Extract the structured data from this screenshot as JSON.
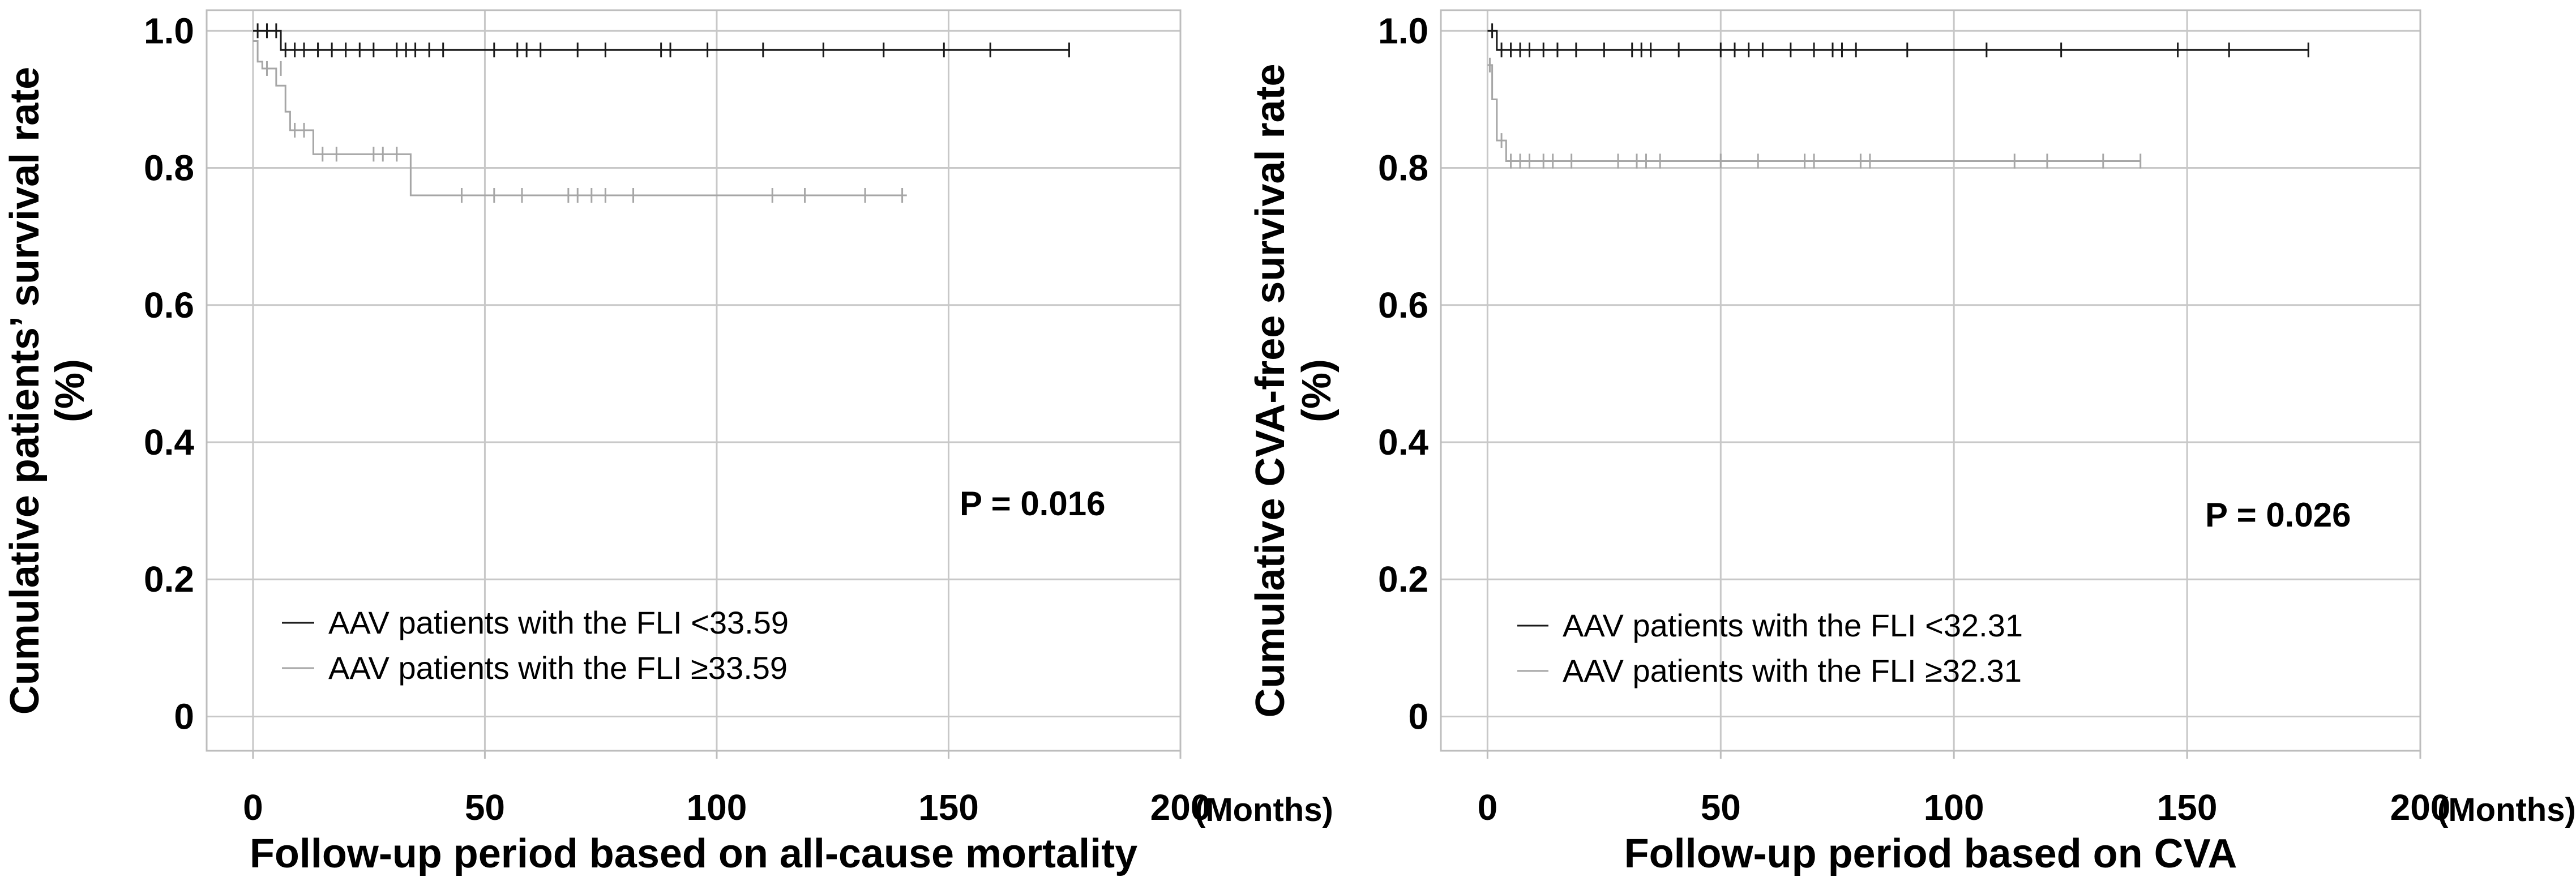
{
  "chart_data": [
    {
      "type": "line",
      "subtype": "kaplan-meier",
      "title": "",
      "xlabel": "Follow-up period based on all-cause mortality",
      "xunit_label": "(Months)",
      "ylabel_line1": "Cumulative patients’ survival rate",
      "ylabel_line2": "(%)",
      "xlim": [
        -10,
        200
      ],
      "ylim": [
        -0.05,
        1.03
      ],
      "xticks": [
        0,
        50,
        100,
        150,
        200
      ],
      "yticks": [
        0,
        0.2,
        0.4,
        0.6,
        0.8,
        1.0
      ],
      "ytick_labels": [
        "0",
        "0.2",
        "0.4",
        "0.6",
        "0.8",
        "1.0"
      ],
      "grid": true,
      "p_value_text": "P = 0.016",
      "legend_position": "bottom-left",
      "series": [
        {
          "name": "AAV patients with the FLI <33.59",
          "color": "#1a1a1a",
          "steps": [
            [
              0,
              1.0
            ],
            [
              6,
              0.972
            ],
            [
              176,
              0.972
            ]
          ],
          "censored": [
            [
              1,
              1.0
            ],
            [
              3,
              1.0
            ],
            [
              5,
              1.0
            ],
            [
              7,
              0.972
            ],
            [
              9,
              0.972
            ],
            [
              11,
              0.972
            ],
            [
              14,
              0.972
            ],
            [
              17,
              0.972
            ],
            [
              20,
              0.972
            ],
            [
              23,
              0.972
            ],
            [
              26,
              0.972
            ],
            [
              31,
              0.972
            ],
            [
              33,
              0.972
            ],
            [
              35,
              0.972
            ],
            [
              38,
              0.972
            ],
            [
              41,
              0.972
            ],
            [
              52,
              0.972
            ],
            [
              57,
              0.972
            ],
            [
              59,
              0.972
            ],
            [
              62,
              0.972
            ],
            [
              70,
              0.972
            ],
            [
              76,
              0.972
            ],
            [
              88,
              0.972
            ],
            [
              90,
              0.972
            ],
            [
              98,
              0.972
            ],
            [
              110,
              0.972
            ],
            [
              123,
              0.972
            ],
            [
              136,
              0.972
            ],
            [
              149,
              0.972
            ],
            [
              159,
              0.972
            ],
            [
              176,
              0.972
            ]
          ]
        },
        {
          "name": "AAV patients with the FLI ≥33.59",
          "color": "#a6a6a6",
          "steps": [
            [
              0,
              0.985
            ],
            [
              1,
              0.955
            ],
            [
              2,
              0.945
            ],
            [
              5,
              0.92
            ],
            [
              7,
              0.882
            ],
            [
              8,
              0.855
            ],
            [
              13,
              0.82
            ],
            [
              34,
              0.76
            ],
            [
              141,
              0.76
            ]
          ],
          "censored": [
            [
              3,
              0.945
            ],
            [
              6,
              0.945
            ],
            [
              9,
              0.855
            ],
            [
              11,
              0.855
            ],
            [
              15,
              0.82
            ],
            [
              18,
              0.82
            ],
            [
              26,
              0.82
            ],
            [
              28,
              0.82
            ],
            [
              31,
              0.82
            ],
            [
              45,
              0.76
            ],
            [
              52,
              0.76
            ],
            [
              58,
              0.76
            ],
            [
              68,
              0.76
            ],
            [
              70,
              0.76
            ],
            [
              73,
              0.76
            ],
            [
              76,
              0.76
            ],
            [
              82,
              0.76
            ],
            [
              112,
              0.76
            ],
            [
              119,
              0.76
            ],
            [
              132,
              0.76
            ],
            [
              140,
              0.76
            ]
          ]
        }
      ]
    },
    {
      "type": "line",
      "subtype": "kaplan-meier",
      "title": "",
      "xlabel": "Follow-up period based on CVA",
      "xunit_label": "(Months)",
      "ylabel_line1": "Cumulative CVA-free survival rate",
      "ylabel_line2": "(%)",
      "xlim": [
        -10,
        200
      ],
      "ylim": [
        -0.05,
        1.03
      ],
      "xticks": [
        0,
        50,
        100,
        150,
        200
      ],
      "yticks": [
        0,
        0.2,
        0.4,
        0.6,
        0.8,
        1.0
      ],
      "ytick_labels": [
        "0",
        "0.2",
        "0.4",
        "0.6",
        "0.8",
        "1.0"
      ],
      "grid": true,
      "p_value_text": "P = 0.026",
      "legend_position": "bottom-left",
      "series": [
        {
          "name": "AAV patients with the FLI <32.31",
          "color": "#1a1a1a",
          "steps": [
            [
              0,
              1.0
            ],
            [
              2,
              0.972
            ],
            [
              176,
              0.972
            ]
          ],
          "censored": [
            [
              1,
              1.0
            ],
            [
              3,
              0.972
            ],
            [
              5,
              0.972
            ],
            [
              7,
              0.972
            ],
            [
              9,
              0.972
            ],
            [
              12,
              0.972
            ],
            [
              15,
              0.972
            ],
            [
              19,
              0.972
            ],
            [
              25,
              0.972
            ],
            [
              31,
              0.972
            ],
            [
              33,
              0.972
            ],
            [
              35,
              0.972
            ],
            [
              41,
              0.972
            ],
            [
              50,
              0.972
            ],
            [
              53,
              0.972
            ],
            [
              56,
              0.972
            ],
            [
              59,
              0.972
            ],
            [
              65,
              0.972
            ],
            [
              70,
              0.972
            ],
            [
              74,
              0.972
            ],
            [
              76,
              0.972
            ],
            [
              79,
              0.972
            ],
            [
              90,
              0.972
            ],
            [
              107,
              0.972
            ],
            [
              123,
              0.972
            ],
            [
              148,
              0.972
            ],
            [
              159,
              0.972
            ],
            [
              176,
              0.972
            ]
          ]
        },
        {
          "name": "AAV patients with the FLI ≥32.31",
          "color": "#a6a6a6",
          "steps": [
            [
              0,
              0.95
            ],
            [
              1,
              0.9
            ],
            [
              2,
              0.84
            ],
            [
              4,
              0.81
            ],
            [
              140,
              0.81
            ]
          ],
          "censored": [
            [
              0.5,
              0.95
            ],
            [
              3,
              0.84
            ],
            [
              5,
              0.81
            ],
            [
              7,
              0.81
            ],
            [
              9,
              0.81
            ],
            [
              12,
              0.81
            ],
            [
              14,
              0.81
            ],
            [
              18,
              0.81
            ],
            [
              28,
              0.81
            ],
            [
              32,
              0.81
            ],
            [
              34,
              0.81
            ],
            [
              37,
              0.81
            ],
            [
              50,
              0.81
            ],
            [
              58,
              0.81
            ],
            [
              68,
              0.81
            ],
            [
              70,
              0.81
            ],
            [
              80,
              0.81
            ],
            [
              82,
              0.81
            ],
            [
              113,
              0.81
            ],
            [
              120,
              0.81
            ],
            [
              132,
              0.81
            ],
            [
              140,
              0.81
            ]
          ]
        }
      ]
    }
  ]
}
